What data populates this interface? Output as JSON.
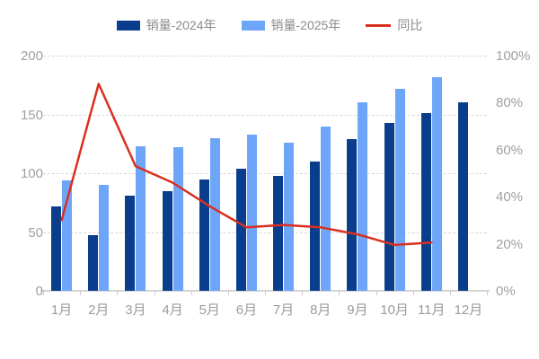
{
  "chart_data": {
    "type": "bar",
    "subtype": "grouped-bars-with-line-overlay",
    "categories": [
      "1月",
      "2月",
      "3月",
      "4月",
      "5月",
      "6月",
      "7月",
      "8月",
      "9月",
      "10月",
      "11月",
      "12月"
    ],
    "series": [
      {
        "name": "销量-2024年",
        "type": "bar",
        "axis": "left",
        "color": "#0a3d8c",
        "values": [
          72,
          47,
          81,
          85,
          95,
          104,
          98,
          110,
          129,
          143,
          151,
          160
        ]
      },
      {
        "name": "销量-2025年",
        "type": "bar",
        "axis": "left",
        "color": "#6da5f8",
        "values": [
          94,
          90,
          123,
          122,
          130,
          133,
          126,
          140,
          160,
          172,
          182,
          null
        ]
      },
      {
        "name": "同比",
        "type": "line",
        "axis": "right",
        "color": "#d9301f",
        "values": [
          30,
          88,
          53,
          46,
          36,
          27,
          28,
          27,
          24,
          19.5,
          20.5,
          null
        ]
      }
    ],
    "left_axis": {
      "min": 0,
      "max": 200,
      "ticks_top_to_bottom": [
        "200",
        "150",
        "100",
        "50",
        "0"
      ]
    },
    "right_axis": {
      "min": 0,
      "max": 100,
      "ticks_top_to_bottom": [
        "100%",
        "80%",
        "60%",
        "40%",
        "20%",
        "0%"
      ],
      "unit": "%"
    },
    "grid": "horizontal dashed",
    "legend_position": "top-center",
    "title": "",
    "xlabel": "",
    "ylabel": ""
  }
}
